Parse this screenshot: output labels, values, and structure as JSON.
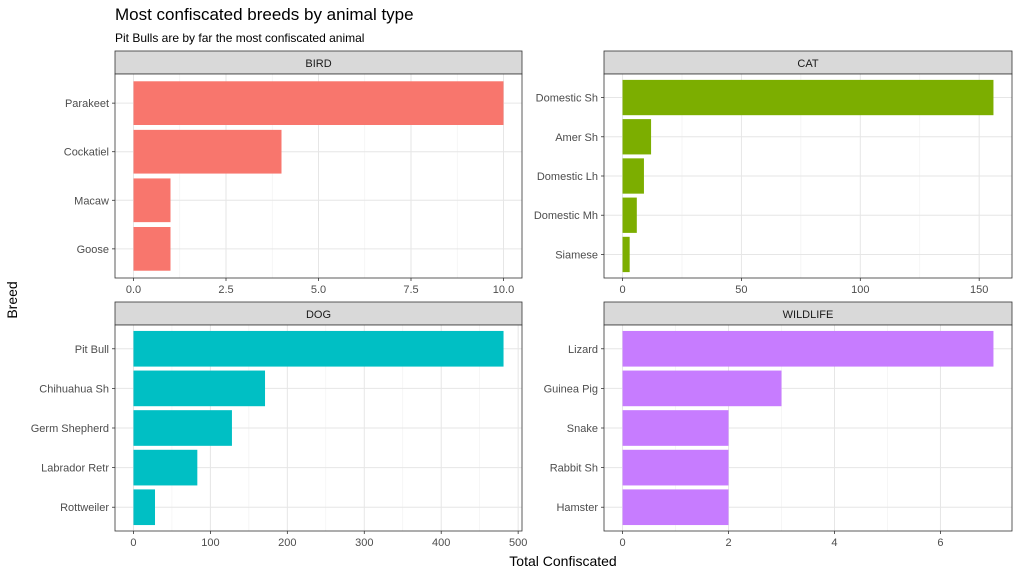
{
  "chart_data": {
    "type": "bar",
    "orientation": "horizontal",
    "title": "Most confiscated breeds by animal type",
    "subtitle": "Pit Bulls are by far the most confiscated animal",
    "xlabel": "Total Confiscated",
    "ylabel": "Breed",
    "grid": true,
    "legend": "none",
    "panels": [
      {
        "facet": "BIRD",
        "color": "#F8766D",
        "categories": [
          "Parakeet",
          "Cockatiel",
          "Macaw",
          "Goose"
        ],
        "values": [
          10,
          4,
          1,
          1
        ],
        "xlim": [
          -0.5,
          10.5
        ],
        "ticks": [
          0,
          2.5,
          5,
          7.5,
          10
        ],
        "tick_labels": [
          "0.0",
          "2.5",
          "5.0",
          "7.5",
          "10.0"
        ]
      },
      {
        "facet": "CAT",
        "color": "#7CAE00",
        "categories": [
          "Domestic Sh",
          "Amer Sh",
          "Domestic Lh",
          "Domestic Mh",
          "Siamese"
        ],
        "values": [
          156,
          12,
          9,
          6,
          3
        ],
        "xlim": [
          -7.8,
          163.8
        ],
        "ticks": [
          0,
          50,
          100,
          150
        ],
        "tick_labels": [
          "0",
          "50",
          "100",
          "150"
        ]
      },
      {
        "facet": "DOG",
        "color": "#00BFC4",
        "categories": [
          "Pit Bull",
          "Chihuahua Sh",
          "Germ Shepherd",
          "Labrador Retr",
          "Rottweiler"
        ],
        "values": [
          481,
          171,
          128,
          83,
          28
        ],
        "xlim": [
          -24,
          505
        ],
        "ticks": [
          0,
          100,
          200,
          300,
          400,
          500
        ],
        "tick_labels": [
          "0",
          "100",
          "200",
          "300",
          "400",
          "500"
        ]
      },
      {
        "facet": "WILDLIFE",
        "color": "#C77CFF",
        "categories": [
          "Lizard",
          "Guinea Pig",
          "Snake",
          "Rabbit Sh",
          "Hamster"
        ],
        "values": [
          7,
          3,
          2,
          2,
          2
        ],
        "xlim": [
          -0.35,
          7.35
        ],
        "ticks": [
          0,
          2,
          4,
          6
        ],
        "tick_labels": [
          "0",
          "2",
          "4",
          "6"
        ]
      }
    ]
  }
}
